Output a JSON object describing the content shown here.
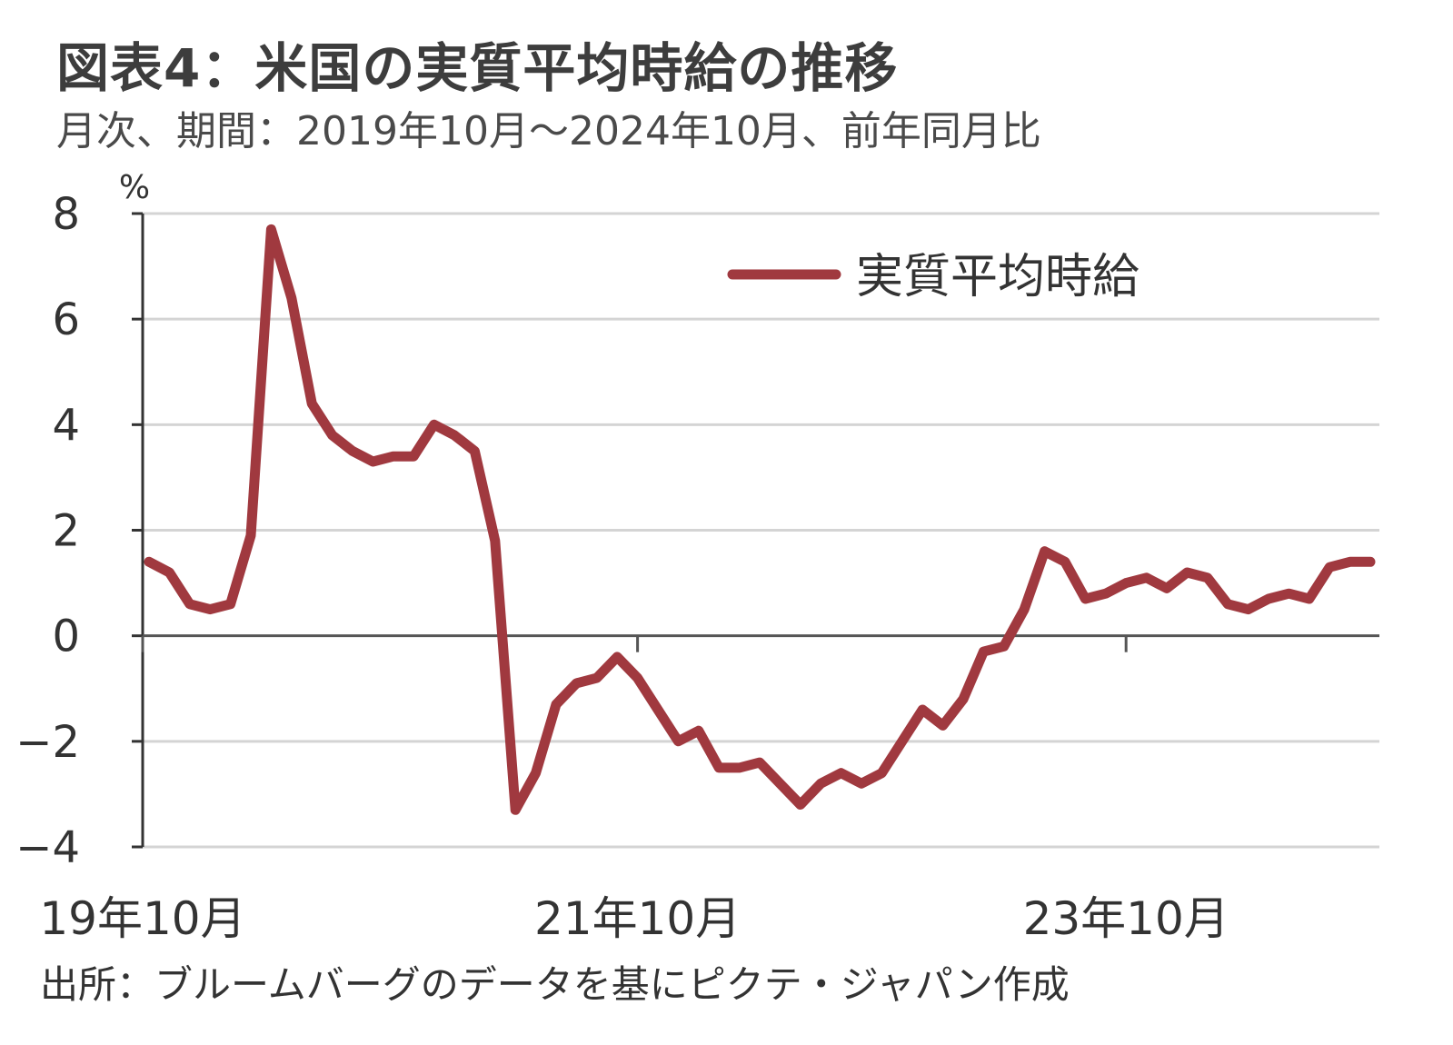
{
  "title": "図表4：米国の実質平均時給の推移",
  "subtitle": "月次、期間：2019年10月～2024年10月、前年同月比",
  "source": "出所：ブルームバーグのデータを基にピクテ・ジャパン作成",
  "colors": {
    "series": "#a0393f",
    "grid": "#d4d4d4",
    "axis": "#333333"
  },
  "chart_data": {
    "type": "line",
    "ylabel": "%",
    "ylim": [
      -4,
      8
    ],
    "yticks": [
      8,
      6,
      4,
      2,
      0,
      -2,
      -4
    ],
    "ytick_labels": [
      "8",
      "6",
      "4",
      "2",
      "0",
      "−2",
      "−4"
    ],
    "xtick_labels": [
      "19年10月",
      "21年10月",
      "23年10月"
    ],
    "xtick_index": [
      0,
      24,
      48
    ],
    "grid": true,
    "legend": "top-right",
    "series": [
      {
        "name": "実質平均時給",
        "x": [
          "2019-10",
          "2019-11",
          "2019-12",
          "2020-01",
          "2020-02",
          "2020-03",
          "2020-04",
          "2020-05",
          "2020-06",
          "2020-07",
          "2020-08",
          "2020-09",
          "2020-10",
          "2020-11",
          "2020-12",
          "2021-01",
          "2021-02",
          "2021-03",
          "2021-04",
          "2021-05",
          "2021-06",
          "2021-07",
          "2021-08",
          "2021-09",
          "2021-10",
          "2021-11",
          "2021-12",
          "2022-01",
          "2022-02",
          "2022-03",
          "2022-04",
          "2022-05",
          "2022-06",
          "2022-07",
          "2022-08",
          "2022-09",
          "2022-10",
          "2022-11",
          "2022-12",
          "2023-01",
          "2023-02",
          "2023-03",
          "2023-04",
          "2023-05",
          "2023-06",
          "2023-07",
          "2023-08",
          "2023-09",
          "2023-10",
          "2023-11",
          "2023-12",
          "2024-01",
          "2024-02",
          "2024-03",
          "2024-04",
          "2024-05",
          "2024-06",
          "2024-07",
          "2024-08",
          "2024-09",
          "2024-10"
        ],
        "values": [
          1.4,
          1.2,
          0.6,
          0.5,
          0.6,
          1.9,
          7.7,
          6.4,
          4.4,
          3.8,
          3.5,
          3.3,
          3.4,
          3.4,
          4.0,
          3.8,
          3.5,
          1.8,
          -3.3,
          -2.6,
          -1.3,
          -0.9,
          -0.8,
          -0.4,
          -0.8,
          -1.4,
          -2.0,
          -1.8,
          -2.5,
          -2.5,
          -2.4,
          -2.8,
          -3.2,
          -2.8,
          -2.6,
          -2.8,
          -2.6,
          -2.0,
          -1.4,
          -1.7,
          -1.2,
          -0.3,
          -0.2,
          0.5,
          1.6,
          1.4,
          0.7,
          0.8,
          1.0,
          1.1,
          0.9,
          1.2,
          1.1,
          0.6,
          0.5,
          0.7,
          0.8,
          0.7,
          1.3,
          1.4,
          1.4
        ]
      }
    ]
  }
}
